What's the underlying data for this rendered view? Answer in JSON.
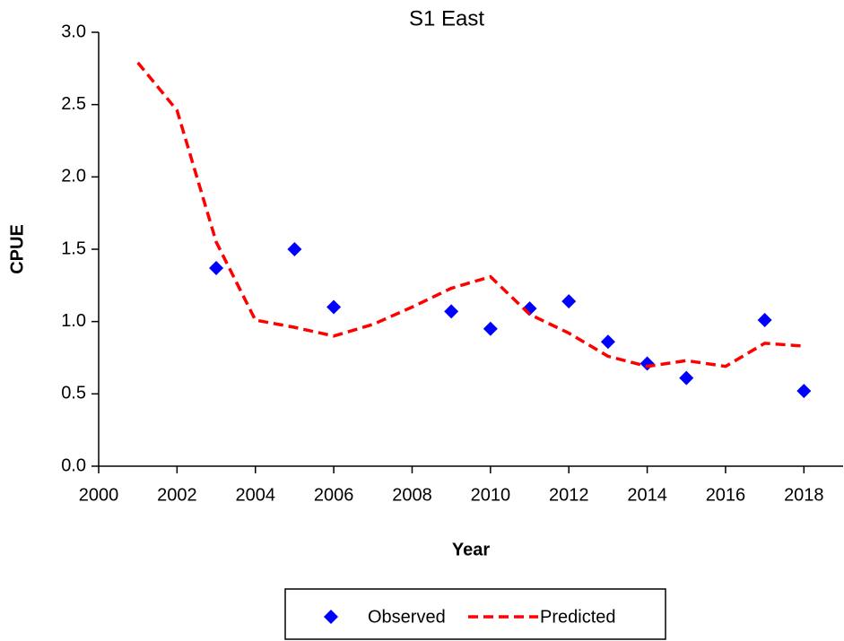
{
  "chart_data": {
    "type": "line",
    "title": "S1 East",
    "x_label": "Year",
    "y_label": "CPUE",
    "x": [
      2001,
      2002,
      2003,
      2004,
      2005,
      2006,
      2007,
      2008,
      2009,
      2010,
      2011,
      2012,
      2013,
      2014,
      2015,
      2016,
      2017,
      2018
    ],
    "series": [
      {
        "name": "Observed",
        "color": "#0000ff",
        "mode": "markers",
        "values": [
          null,
          null,
          1.37,
          null,
          1.5,
          1.1,
          null,
          null,
          1.07,
          0.95,
          1.09,
          1.14,
          0.86,
          0.71,
          0.61,
          null,
          1.01,
          0.52
        ]
      },
      {
        "name": "Predicted",
        "color": "#ff0000",
        "mode": "dashed",
        "values": [
          2.79,
          2.46,
          1.55,
          1.01,
          0.96,
          0.9,
          0.98,
          1.1,
          1.23,
          1.31,
          1.05,
          0.92,
          0.76,
          0.69,
          0.73,
          0.69,
          0.85,
          0.83
        ]
      }
    ],
    "xlim": [
      2000,
      2019
    ],
    "xticks": [
      2000,
      2002,
      2004,
      2006,
      2008,
      2010,
      2012,
      2014,
      2016,
      2018
    ],
    "ylim": [
      0,
      3
    ],
    "yticks": [
      {
        "value": 0,
        "label": "0.0"
      },
      0.5,
      {
        "value": 1,
        "label": "1.0"
      },
      1.5,
      {
        "value": 2,
        "label": "2.0"
      },
      2.5,
      {
        "value": 3,
        "label": "3.0"
      }
    ],
    "legend": "bottom"
  }
}
